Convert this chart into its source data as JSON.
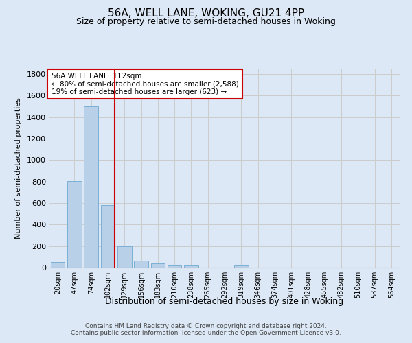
{
  "title": "56A, WELL LANE, WOKING, GU21 4PP",
  "subtitle": "Size of property relative to semi-detached houses in Woking",
  "xlabel": "Distribution of semi-detached houses by size in Woking",
  "ylabel": "Number of semi-detached properties",
  "categories": [
    "20sqm",
    "47sqm",
    "74sqm",
    "102sqm",
    "129sqm",
    "156sqm",
    "183sqm",
    "210sqm",
    "238sqm",
    "265sqm",
    "292sqm",
    "319sqm",
    "346sqm",
    "374sqm",
    "401sqm",
    "428sqm",
    "455sqm",
    "482sqm",
    "510sqm",
    "537sqm",
    "564sqm"
  ],
  "values": [
    50,
    805,
    1500,
    580,
    195,
    65,
    40,
    20,
    20,
    0,
    0,
    20,
    0,
    0,
    0,
    0,
    0,
    0,
    0,
    0,
    0
  ],
  "bar_color": "#b8d0e8",
  "bar_edge_color": "#7aafd4",
  "vline_color": "#cc0000",
  "annotation_text": "56A WELL LANE: 112sqm\n← 80% of semi-detached houses are smaller (2,588)\n19% of semi-detached houses are larger (623) →",
  "annotation_box_color": "#ffffff",
  "annotation_box_edge": "#cc0000",
  "ylim": [
    0,
    1850
  ],
  "yticks": [
    0,
    200,
    400,
    600,
    800,
    1000,
    1200,
    1400,
    1600,
    1800
  ],
  "grid_color": "#cccccc",
  "bg_color": "#dce8f5",
  "footer": "Contains HM Land Registry data © Crown copyright and database right 2024.\nContains public sector information licensed under the Open Government Licence v3.0."
}
